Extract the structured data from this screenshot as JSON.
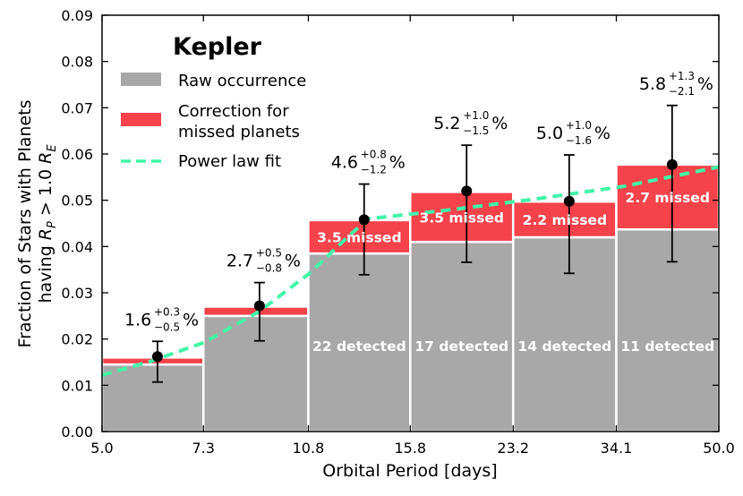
{
  "chart_data": {
    "type": "bar",
    "title": "Kepler",
    "xlabel": "Orbital Period [days]",
    "ylabel_line1": "Fraction of Stars with Planets",
    "ylabel_line2": "having R_P > 1.0 R_E",
    "ylim": [
      0,
      0.09
    ],
    "ytick_labels": [
      "0.00",
      "0.01",
      "0.02",
      "0.03",
      "0.04",
      "0.05",
      "0.06",
      "0.07",
      "0.08",
      "0.09"
    ],
    "bin_edges": [
      5.0,
      7.3,
      10.8,
      15.8,
      23.2,
      34.1,
      50.0
    ],
    "xtick_labels": [
      "5.0",
      "7.3",
      "10.8",
      "15.8",
      "23.2",
      "34.1",
      "50.0"
    ],
    "series": [
      {
        "name": "Raw occurrence",
        "color": "#a8a8a8",
        "values": [
          0.0145,
          0.025,
          0.0385,
          0.041,
          0.042,
          0.0437
        ]
      },
      {
        "name": "Correction for missed planets",
        "color": "#f5424b",
        "values": [
          0.0015,
          0.002,
          0.0072,
          0.0108,
          0.0077,
          0.014
        ]
      }
    ],
    "points": {
      "x": [
        6.15,
        9.0,
        13.3,
        19.5,
        28.6,
        42.0
      ],
      "y": [
        0.0162,
        0.0272,
        0.0458,
        0.052,
        0.0498,
        0.0577
      ],
      "yerr_low": [
        0.0055,
        0.0076,
        0.0119,
        0.0154,
        0.0156,
        0.021
      ],
      "yerr_high": [
        0.0033,
        0.005,
        0.0077,
        0.0099,
        0.01,
        0.0128
      ]
    },
    "power_law_fit": {
      "x": [
        5.0,
        6.0,
        7.3,
        9.0,
        10.8,
        12.5,
        13.5,
        18.0,
        25.0,
        35.0,
        50.0
      ],
      "y": [
        0.0122,
        0.0152,
        0.0192,
        0.026,
        0.034,
        0.042,
        0.046,
        0.0478,
        0.0502,
        0.053,
        0.0572
      ],
      "color": "#43f5a8"
    },
    "bar_labels": [
      {
        "detected": "",
        "missed": ""
      },
      {
        "detected": "",
        "missed": ""
      },
      {
        "detected": "22 detected",
        "missed": "3.5 missed"
      },
      {
        "detected": "17 detected",
        "missed": "3.5 missed"
      },
      {
        "detected": "14 detected",
        "missed": "2.2 missed"
      },
      {
        "detected": "11 detected",
        "missed": "2.7 missed"
      }
    ],
    "percent_labels": [
      {
        "main": "1.6",
        "sup": "+0.3",
        "sub": "−0.5",
        "unit": "%"
      },
      {
        "main": "2.7",
        "sup": "+0.5",
        "sub": "−0.8",
        "unit": "%"
      },
      {
        "main": "4.6",
        "sup": "+0.8",
        "sub": "−1.2",
        "unit": "%"
      },
      {
        "main": "5.2",
        "sup": "+1.0",
        "sub": "−1.5",
        "unit": "%"
      },
      {
        "main": "5.0",
        "sup": "+1.0",
        "sub": "−1.6",
        "unit": "%"
      },
      {
        "main": "5.8",
        "sup": "+1.3",
        "sub": "−2.1",
        "unit": "%"
      }
    ],
    "legend": {
      "position": "top-left",
      "title": "Kepler",
      "entries": [
        {
          "label": "Raw occurrence",
          "color": "#a8a8a8"
        },
        {
          "label": "Correction for",
          "label2": "missed planets",
          "color": "#f5424b"
        },
        {
          "label": "Power law fit",
          "color": "#43f5a8"
        }
      ]
    }
  }
}
